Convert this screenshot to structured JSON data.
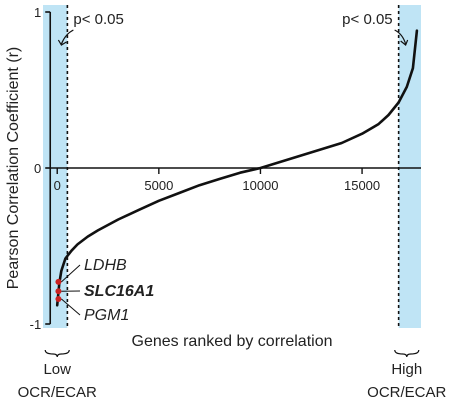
{
  "chart_data": {
    "type": "line",
    "title": "",
    "ylabel": "Pearson Correlation Coefficient (r)",
    "xlabel": "Genes ranked by correlation",
    "xlim": [
      -700,
      17900
    ],
    "ylim": [
      -1,
      1
    ],
    "x_ticks": [
      {
        "value": 0,
        "label": "0"
      },
      {
        "value": 5000,
        "label": "5000"
      },
      {
        "value": 10000,
        "label": "10000"
      },
      {
        "value": 15000,
        "label": "15000"
      }
    ],
    "y_ticks": [
      {
        "value": 1,
        "label": "1"
      },
      {
        "value": 0,
        "label": "0"
      },
      {
        "value": -1,
        "label": "-1"
      }
    ],
    "series": [
      {
        "x": [
          0,
          100,
          200,
          400,
          700,
          1000,
          1500,
          2000,
          3000,
          4000,
          5000,
          6000,
          7000,
          8000,
          9000,
          10000,
          11000,
          12000,
          13000,
          14000,
          15000,
          15800,
          16300,
          16800,
          17200,
          17500,
          17700
        ],
        "y": [
          -0.88,
          -0.74,
          -0.66,
          -0.58,
          -0.53,
          -0.49,
          -0.44,
          -0.4,
          -0.33,
          -0.27,
          -0.21,
          -0.16,
          -0.11,
          -0.07,
          -0.03,
          0.0,
          0.04,
          0.08,
          0.12,
          0.16,
          0.22,
          0.28,
          0.34,
          0.42,
          0.52,
          0.64,
          0.88
        ]
      }
    ],
    "highlighted_points": [
      {
        "label": "LDHB",
        "x": 10,
        "y": -0.73,
        "bold": false
      },
      {
        "label": "SLC16A1",
        "x": 10,
        "y": -0.79,
        "bold": true
      },
      {
        "label": "PGM1",
        "x": 10,
        "y": -0.84,
        "bold": false
      }
    ],
    "significance_regions": [
      {
        "label": "p< 0.05",
        "x_start": -700,
        "x_end": 500
      },
      {
        "label": "p< 0.05",
        "x_start": 16800,
        "x_end": 17900
      }
    ],
    "bottom_labels": [
      {
        "line1": "Low",
        "line2": "OCR/ECAR",
        "x": 0
      },
      {
        "line1": "High",
        "line2": "OCR/ECAR",
        "x": 17200
      }
    ],
    "colors": {
      "region": "#bfe4f5",
      "curve": "#111111",
      "highlight": "#cc2222"
    },
    "grid": false
  }
}
